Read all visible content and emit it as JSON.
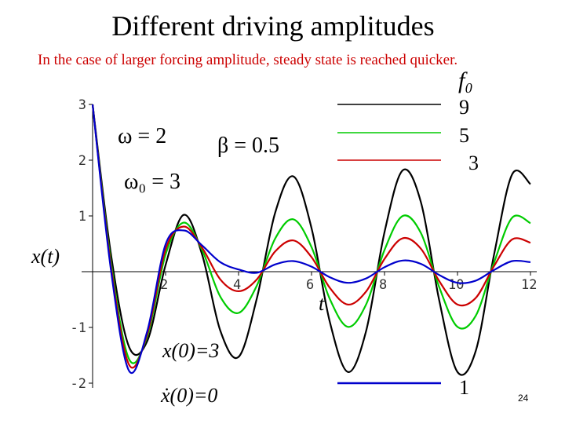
{
  "slide": {
    "title": "Different driving amplitudes",
    "subtitle": "In the case of larger forcing amplitude, steady state is reached quicker.",
    "page_number": "24"
  },
  "annotations": {
    "omega": "ω = 2",
    "omega0": "ω₀ = 3",
    "beta": "β = 0.5",
    "x0": "x(0)=3",
    "v0": "ẋ(0)=0",
    "legend_symbol": "f₀"
  },
  "colors": {
    "f0_9": "#000000",
    "f0_5": "#00cc00",
    "f0_3": "#cc0000",
    "f0_1": "#0000cc",
    "subtitle": "#cc0000",
    "axis": "#000000"
  },
  "chart_data": {
    "type": "line",
    "title": "",
    "xlabel": "t",
    "ylabel": "x(t)",
    "xlim": [
      0,
      12
    ],
    "ylim": [
      -2,
      3
    ],
    "xticks": [
      "2",
      "4",
      "6",
      "8",
      "10",
      "12"
    ],
    "yticks": [
      "3",
      "2",
      "1",
      "-1",
      "-2"
    ],
    "grid": false,
    "legend_title": "f₀",
    "legend_position": "top-right",
    "parameters": {
      "omega": 2,
      "omega0": 3,
      "beta": 0.5,
      "x0": 3,
      "v0": 0
    },
    "x": [
      0,
      0.5,
      1,
      1.5,
      2,
      2.5,
      3,
      3.5,
      4,
      4.5,
      5,
      5.5,
      6,
      6.5,
      7,
      7.5,
      8,
      8.5,
      9,
      9.5,
      10,
      10.5,
      11,
      11.5,
      12
    ],
    "series": [
      {
        "name": "9",
        "color": "#000000",
        "values": [
          3.0,
          0.32,
          -1.35,
          -1.24,
          0.12,
          1.02,
          0.31,
          -1.06,
          -1.53,
          -0.48,
          1.05,
          1.71,
          0.78,
          -0.9,
          -1.8,
          -1.05,
          0.71,
          1.82,
          1.24,
          -0.52,
          -1.8,
          -1.42,
          0.3,
          1.75,
          1.57
        ]
      },
      {
        "name": "5",
        "color": "#00cc00",
        "values": [
          3.0,
          0.18,
          -1.57,
          -1.15,
          0.31,
          0.88,
          0.39,
          -0.45,
          -0.74,
          -0.25,
          0.59,
          0.94,
          0.44,
          -0.49,
          -0.99,
          -0.58,
          0.39,
          1.0,
          0.69,
          -0.28,
          -0.99,
          -0.79,
          0.16,
          0.97,
          0.87
        ]
      },
      {
        "name": "3",
        "color": "#cc0000",
        "values": [
          3.0,
          0.11,
          -1.67,
          -1.11,
          0.4,
          0.81,
          0.43,
          -0.14,
          -0.35,
          -0.14,
          0.36,
          0.56,
          0.26,
          -0.29,
          -0.59,
          -0.35,
          0.23,
          0.6,
          0.41,
          -0.17,
          -0.59,
          -0.47,
          0.1,
          0.58,
          0.52
        ]
      },
      {
        "name": "1",
        "color": "#0000cc",
        "values": [
          3.0,
          0.04,
          -1.78,
          -1.06,
          0.49,
          0.74,
          0.47,
          0.17,
          0.04,
          -0.02,
          0.13,
          0.19,
          0.09,
          -0.1,
          -0.2,
          -0.12,
          0.08,
          0.2,
          0.14,
          -0.06,
          -0.2,
          -0.16,
          0.03,
          0.19,
          0.17
        ]
      }
    ]
  }
}
